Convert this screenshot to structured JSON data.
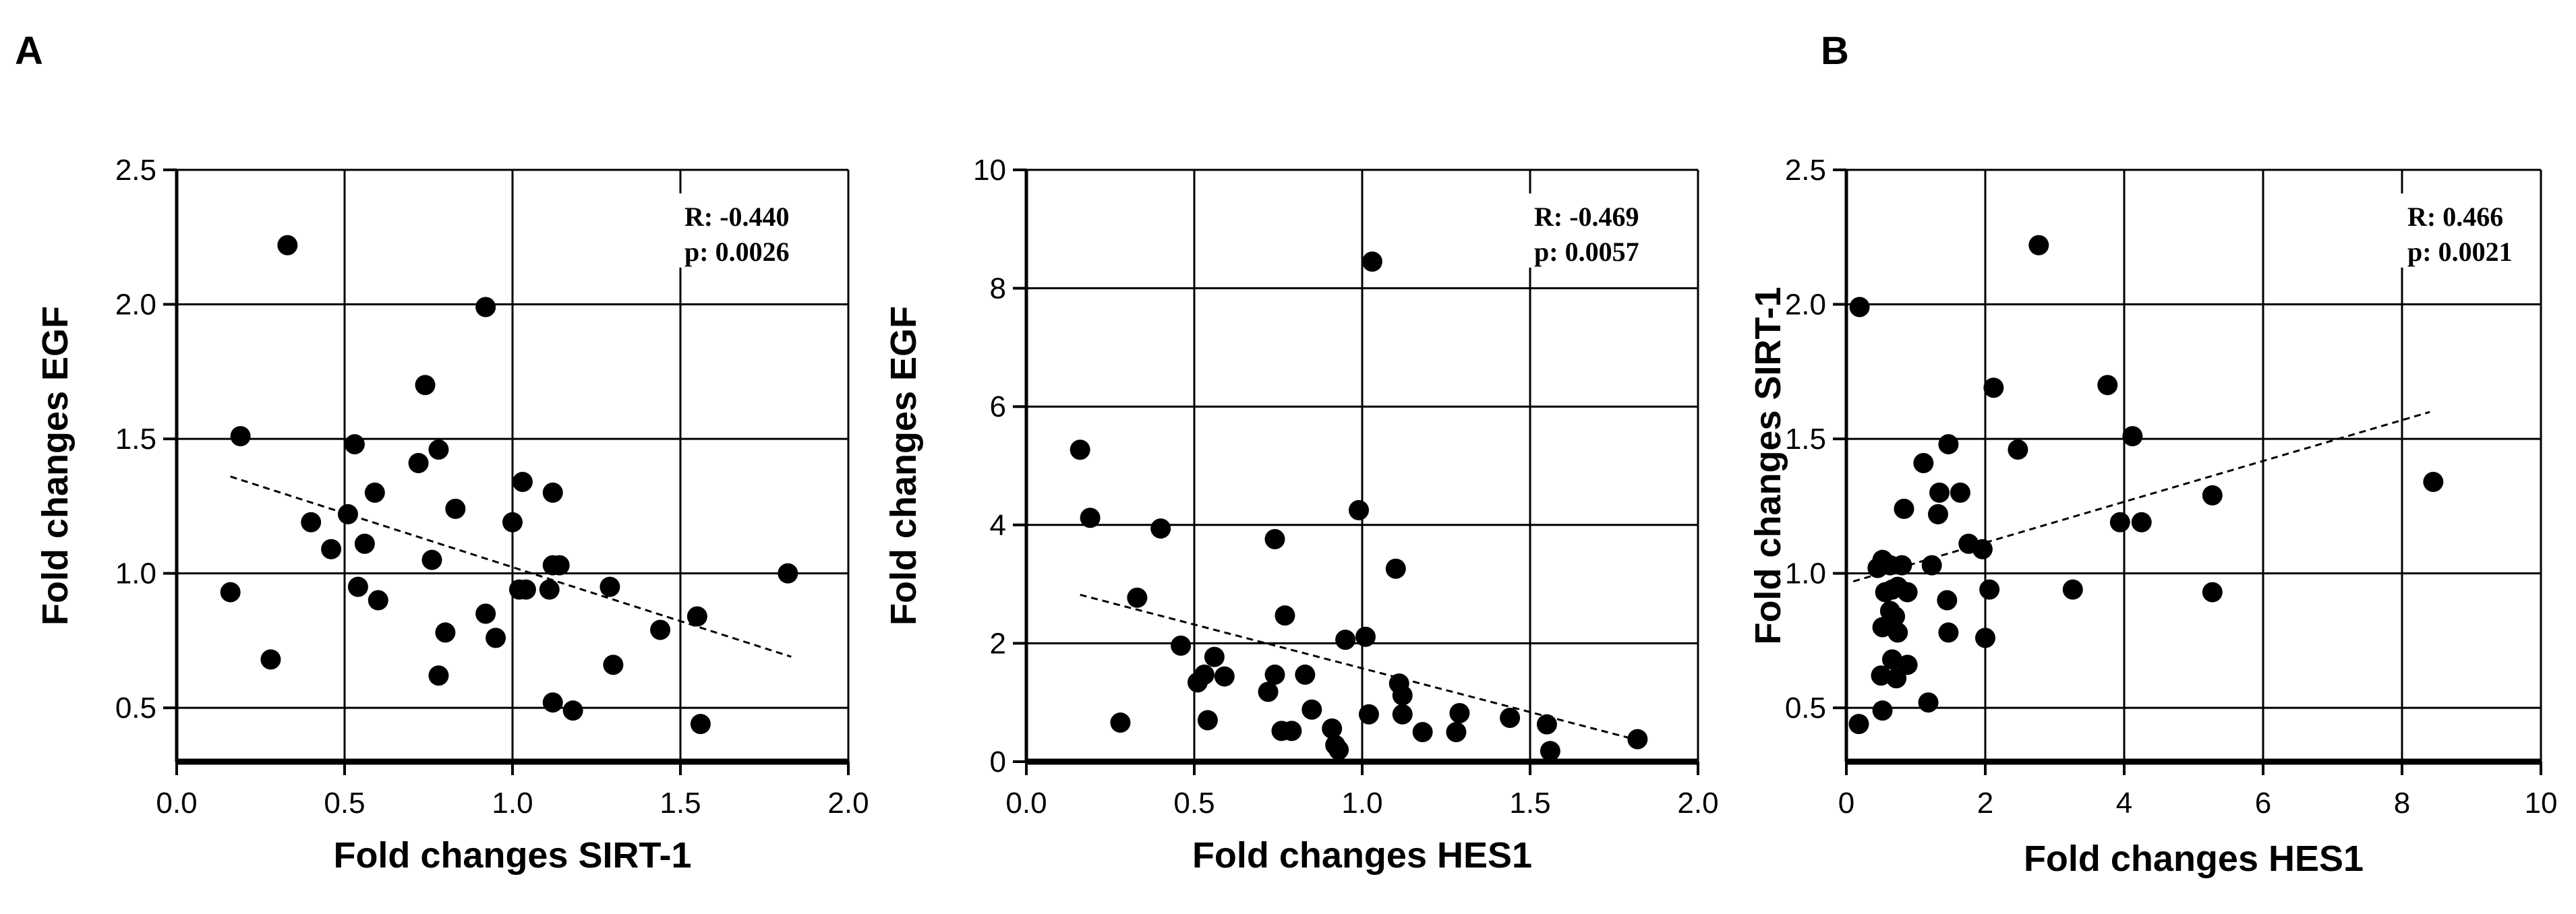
{
  "panel_letters": [
    "A",
    "B"
  ],
  "chart_data": [
    {
      "type": "scatter",
      "xlabel": "Fold changes SIRT-1",
      "ylabel": "Fold changes EGF",
      "xlim": [
        0,
        2
      ],
      "ylim": [
        0.3,
        2.5
      ],
      "xticks": [
        "0.0",
        "0.5",
        "1.0",
        "1.5",
        "2.0"
      ],
      "yticks": [
        "0.5",
        "1.0",
        "1.5",
        "2.0",
        "2.5"
      ],
      "xtick_values": [
        0,
        0.5,
        1,
        1.5,
        2
      ],
      "ytick_values": [
        0.5,
        1.0,
        1.5,
        2.0,
        2.5
      ],
      "grid": true,
      "annotation": [
        "R: -0.440",
        "p: 0.0026"
      ],
      "trendline": [
        [
          0.16,
          1.36
        ],
        [
          1.83,
          0.69
        ]
      ],
      "points": [
        [
          0.33,
          2.22
        ],
        [
          0.92,
          1.99
        ],
        [
          0.19,
          1.51
        ],
        [
          0.53,
          1.48
        ],
        [
          0.74,
          1.7
        ],
        [
          0.78,
          1.46
        ],
        [
          0.72,
          1.41
        ],
        [
          0.59,
          1.3
        ],
        [
          0.83,
          1.24
        ],
        [
          0.51,
          1.22
        ],
        [
          0.4,
          1.19
        ],
        [
          0.46,
          1.09
        ],
        [
          0.56,
          1.11
        ],
        [
          1.03,
          1.34
        ],
        [
          1.12,
          1.3
        ],
        [
          1.0,
          1.19
        ],
        [
          1.12,
          1.03
        ],
        [
          1.14,
          1.03
        ],
        [
          0.76,
          1.05
        ],
        [
          1.82,
          1.0
        ],
        [
          0.16,
          0.93
        ],
        [
          0.54,
          0.95
        ],
        [
          0.6,
          0.9
        ],
        [
          1.02,
          0.94
        ],
        [
          1.04,
          0.94
        ],
        [
          1.11,
          0.94
        ],
        [
          1.29,
          0.95
        ],
        [
          0.92,
          0.85
        ],
        [
          0.8,
          0.78
        ],
        [
          0.95,
          0.76
        ],
        [
          1.44,
          0.79
        ],
        [
          1.55,
          0.84
        ],
        [
          0.28,
          0.68
        ],
        [
          0.78,
          0.62
        ],
        [
          1.3,
          0.66
        ],
        [
          1.12,
          0.52
        ],
        [
          1.18,
          0.49
        ],
        [
          1.56,
          0.44
        ]
      ]
    },
    {
      "type": "scatter",
      "xlabel": "Fold changes HES1",
      "ylabel": "Fold changes EGF",
      "xlim": [
        0,
        2
      ],
      "ylim": [
        0,
        10
      ],
      "xticks": [
        "0.0",
        "0.5",
        "1.0",
        "1.5",
        "2.0"
      ],
      "yticks": [
        "0",
        "2",
        "4",
        "6",
        "8",
        "10"
      ],
      "xtick_values": [
        0,
        0.5,
        1,
        1.5,
        2
      ],
      "ytick_values": [
        0,
        2,
        4,
        6,
        8,
        10
      ],
      "grid": true,
      "annotation": [
        "R: -0.469",
        "p: 0.0057"
      ],
      "trendline": [
        [
          0.16,
          2.82
        ],
        [
          1.83,
          0.35
        ]
      ],
      "points": [
        [
          1.03,
          8.45
        ],
        [
          0.16,
          5.27
        ],
        [
          0.19,
          4.12
        ],
        [
          0.4,
          3.94
        ],
        [
          0.99,
          4.25
        ],
        [
          0.74,
          3.76
        ],
        [
          1.1,
          3.26
        ],
        [
          0.33,
          2.77
        ],
        [
          0.77,
          2.47
        ],
        [
          0.95,
          2.06
        ],
        [
          1.01,
          2.11
        ],
        [
          0.46,
          1.96
        ],
        [
          0.74,
          1.47
        ],
        [
          0.56,
          1.77
        ],
        [
          0.59,
          1.44
        ],
        [
          0.53,
          1.47
        ],
        [
          0.51,
          1.34
        ],
        [
          0.83,
          1.47
        ],
        [
          1.11,
          1.32
        ],
        [
          1.12,
          1.12
        ],
        [
          0.72,
          1.18
        ],
        [
          0.76,
          0.52
        ],
        [
          0.79,
          0.52
        ],
        [
          0.85,
          0.88
        ],
        [
          1.02,
          0.8
        ],
        [
          1.12,
          0.8
        ],
        [
          1.29,
          0.82
        ],
        [
          1.44,
          0.74
        ],
        [
          1.55,
          0.63
        ],
        [
          1.18,
          0.5
        ],
        [
          1.28,
          0.5
        ],
        [
          0.28,
          0.66
        ],
        [
          0.54,
          0.7
        ],
        [
          0.91,
          0.56
        ],
        [
          0.92,
          0.28
        ],
        [
          0.93,
          0.2
        ],
        [
          1.56,
          0.18
        ],
        [
          1.82,
          0.38
        ]
      ]
    },
    {
      "type": "scatter",
      "xlabel": "Fold changes HES1",
      "ylabel": "Fold changes SIRT-1",
      "xlim": [
        0,
        10
      ],
      "ylim": [
        0.3,
        2.5
      ],
      "xticks": [
        "0",
        "2",
        "4",
        "6",
        "8",
        "10"
      ],
      "yticks": [
        "0.5",
        "1.0",
        "1.5",
        "2.0",
        "2.5"
      ],
      "xtick_values": [
        0,
        2,
        4,
        6,
        8,
        10
      ],
      "ytick_values": [
        0.5,
        1.0,
        1.5,
        2.0,
        2.5
      ],
      "grid": true,
      "annotation": [
        "R: 0.466",
        "p: 0.0021"
      ],
      "trendline": [
        [
          0.1,
          0.97
        ],
        [
          8.4,
          1.6
        ]
      ],
      "points": [
        [
          2.77,
          2.22
        ],
        [
          0.19,
          1.99
        ],
        [
          2.12,
          1.69
        ],
        [
          3.76,
          1.7
        ],
        [
          4.12,
          1.51
        ],
        [
          1.47,
          1.48
        ],
        [
          2.47,
          1.46
        ],
        [
          1.11,
          1.41
        ],
        [
          1.34,
          1.3
        ],
        [
          1.64,
          1.3
        ],
        [
          0.83,
          1.24
        ],
        [
          3.94,
          1.19
        ],
        [
          4.25,
          1.19
        ],
        [
          1.32,
          1.22
        ],
        [
          5.27,
          1.29
        ],
        [
          1.76,
          1.11
        ],
        [
          1.96,
          1.09
        ],
        [
          8.45,
          1.34
        ],
        [
          0.52,
          1.05
        ],
        [
          0.45,
          1.02
        ],
        [
          0.63,
          1.03
        ],
        [
          0.8,
          1.03
        ],
        [
          0.74,
          0.95
        ],
        [
          0.88,
          0.93
        ],
        [
          1.23,
          1.03
        ],
        [
          0.56,
          0.93
        ],
        [
          0.66,
          0.94
        ],
        [
          2.06,
          0.94
        ],
        [
          3.26,
          0.94
        ],
        [
          5.27,
          0.93
        ],
        [
          1.45,
          0.9
        ],
        [
          0.63,
          0.86
        ],
        [
          0.7,
          0.84
        ],
        [
          0.52,
          0.8
        ],
        [
          0.74,
          0.78
        ],
        [
          1.47,
          0.78
        ],
        [
          2.0,
          0.76
        ],
        [
          0.66,
          0.68
        ],
        [
          0.88,
          0.66
        ],
        [
          0.5,
          0.62
        ],
        [
          0.72,
          0.61
        ],
        [
          1.18,
          0.52
        ],
        [
          0.52,
          0.49
        ],
        [
          0.18,
          0.44
        ]
      ]
    }
  ]
}
